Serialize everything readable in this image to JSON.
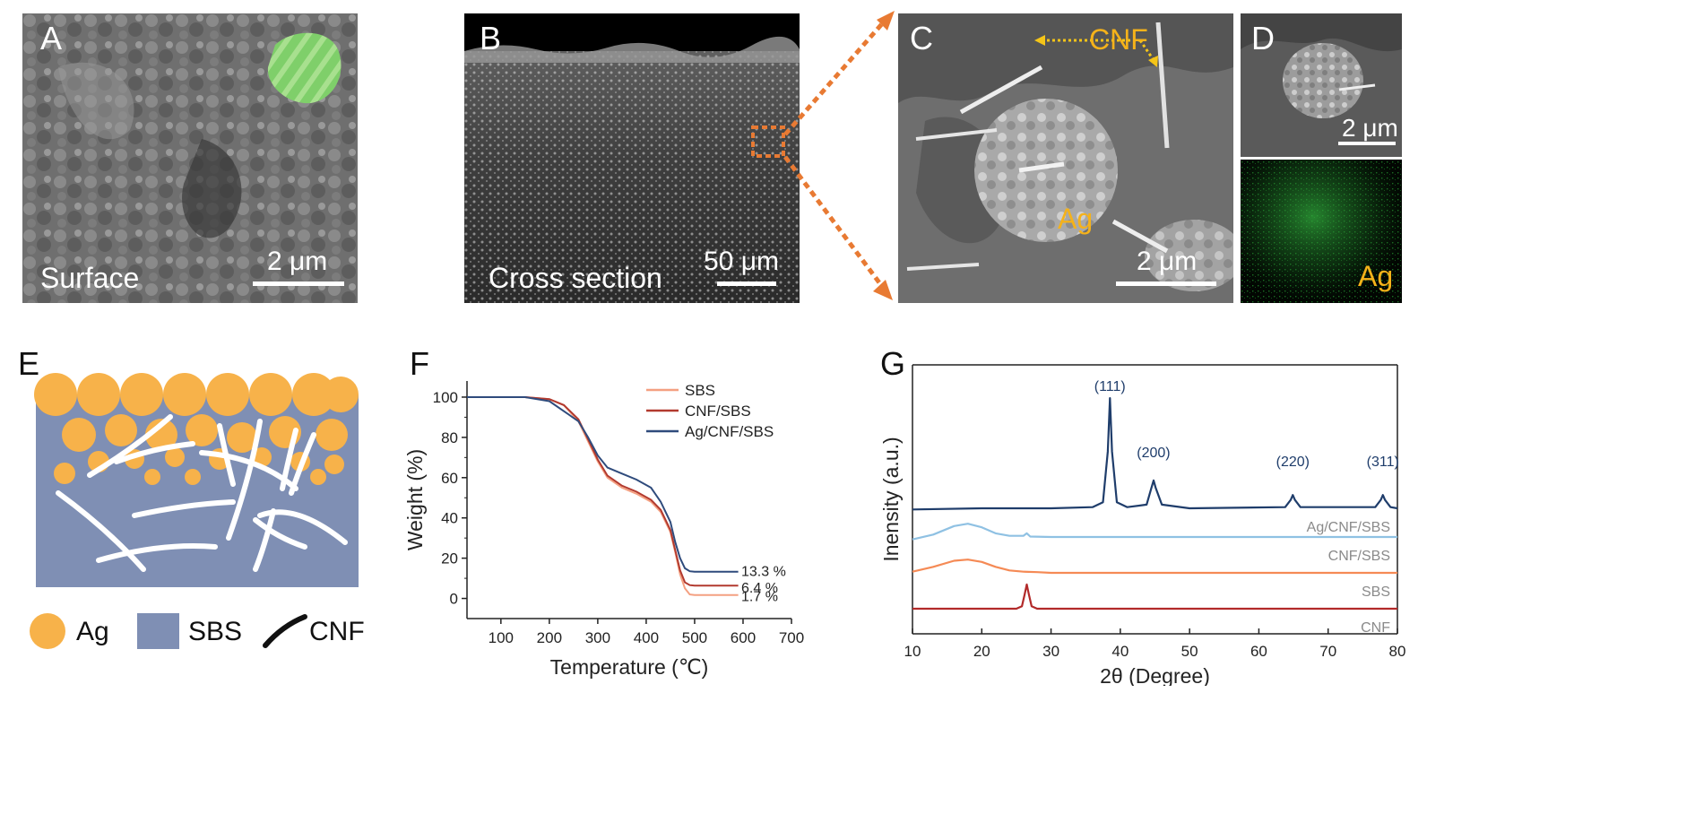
{
  "panels": {
    "A": {
      "letter": "A",
      "label": "Surface",
      "scale": "2 μm"
    },
    "B": {
      "letter": "B",
      "label": "Cross section",
      "scale": "50 μm"
    },
    "C": {
      "letter": "C",
      "cnf_label": "CNF",
      "ag_label": "Ag",
      "scale": "2 μm"
    },
    "D": {
      "letter": "D",
      "scale": "2 μm",
      "map_label": "Ag"
    },
    "E": {
      "letter": "E",
      "legend": [
        {
          "label": "Ag",
          "color": "#f7b24a"
        },
        {
          "label": "SBS",
          "color": "#7f8fb4"
        },
        {
          "label": "CNF",
          "color": "#111111"
        }
      ]
    },
    "F": {
      "letter": "F"
    },
    "G": {
      "letter": "G"
    }
  },
  "colors": {
    "orange_arrow": "#e87a33",
    "sem_bg": "#555555",
    "map_green": "#2fa63a"
  },
  "chart_data": [
    {
      "panel": "F",
      "type": "line",
      "xlabel": "Temperature (℃)",
      "ylabel": "Weight (%)",
      "xlim": [
        30,
        700
      ],
      "ylim": [
        -10,
        108
      ],
      "xticks": [
        100,
        200,
        300,
        400,
        500,
        600,
        700
      ],
      "yticks": [
        0,
        20,
        40,
        60,
        80,
        100
      ],
      "legend_position": "top-right",
      "series": [
        {
          "name": "SBS",
          "color": "#f4a081",
          "x": [
            30,
            150,
            200,
            230,
            260,
            280,
            300,
            320,
            350,
            380,
            410,
            430,
            450,
            460,
            470,
            480,
            490,
            500,
            520,
            550,
            590
          ],
          "y": [
            100,
            100,
            99,
            96,
            88,
            78,
            68,
            60,
            55,
            52,
            48,
            43,
            33,
            23,
            12,
            5,
            2,
            1.7,
            1.7,
            1.7,
            1.7
          ]
        },
        {
          "name": "CNF/SBS",
          "color": "#b23a2f",
          "x": [
            30,
            150,
            200,
            230,
            260,
            280,
            300,
            320,
            350,
            380,
            410,
            430,
            450,
            460,
            470,
            480,
            490,
            500,
            520,
            550,
            590
          ],
          "y": [
            100,
            100,
            99,
            96,
            89,
            79,
            69,
            61,
            56,
            53,
            49,
            44,
            34,
            24,
            14,
            8,
            6.6,
            6.4,
            6.4,
            6.4,
            6.4
          ]
        },
        {
          "name": "Ag/CNF/SBS",
          "color": "#2f4b7c",
          "x": [
            30,
            150,
            200,
            230,
            260,
            280,
            300,
            320,
            350,
            380,
            410,
            430,
            450,
            460,
            470,
            480,
            490,
            500,
            520,
            550,
            590
          ],
          "y": [
            100,
            100,
            98,
            93,
            88,
            80,
            71,
            65,
            62,
            59,
            55,
            48,
            38,
            28,
            20,
            15,
            13.5,
            13.3,
            13.3,
            13.3,
            13.3
          ]
        }
      ],
      "annotations": [
        "13.3 %",
        "6.4 %",
        "1.7 %"
      ]
    },
    {
      "panel": "G",
      "type": "line",
      "xlabel": "2θ (Degree)",
      "ylabel": "Inensity (a.u.)",
      "xlim": [
        10,
        80
      ],
      "xticks": [
        10,
        20,
        30,
        40,
        50,
        60,
        70,
        80
      ],
      "series": [
        {
          "name": "Ag/CNF/SBS",
          "color": "#1f3d6b",
          "x": [
            10,
            20,
            30,
            36,
            37.5,
            38.2,
            38.5,
            38.8,
            39.5,
            41,
            43.8,
            44.5,
            44.8,
            45.1,
            46,
            50,
            63.8,
            64.6,
            64.9,
            65.2,
            66,
            76.8,
            77.6,
            77.9,
            78.2,
            79,
            80
          ],
          "y": [
            0.06,
            0.065,
            0.065,
            0.07,
            0.09,
            0.3,
            0.52,
            0.3,
            0.09,
            0.07,
            0.08,
            0.15,
            0.18,
            0.15,
            0.08,
            0.065,
            0.07,
            0.1,
            0.12,
            0.1,
            0.07,
            0.07,
            0.1,
            0.12,
            0.1,
            0.07,
            0.065
          ]
        },
        {
          "name": "CNF/SBS",
          "color": "#8fc1e3",
          "x": [
            10,
            13,
            16,
            18,
            20,
            22,
            24,
            26,
            26.5,
            27,
            30,
            40,
            50,
            60,
            70,
            80
          ],
          "y": [
            0.03,
            0.05,
            0.085,
            0.095,
            0.08,
            0.055,
            0.045,
            0.045,
            0.055,
            0.042,
            0.04,
            0.04,
            0.04,
            0.04,
            0.04,
            0.04
          ]
        },
        {
          "name": "SBS",
          "color": "#f58a55",
          "x": [
            10,
            13,
            16,
            18,
            20,
            22,
            24,
            26,
            28,
            30,
            40,
            50,
            60,
            70,
            80
          ],
          "y": [
            0.03,
            0.05,
            0.075,
            0.08,
            0.07,
            0.05,
            0.035,
            0.03,
            0.028,
            0.025,
            0.025,
            0.025,
            0.025,
            0.025,
            0.025
          ]
        },
        {
          "name": "CNF",
          "color": "#b22a2a",
          "x": [
            10,
            25,
            25.8,
            26.2,
            26.5,
            26.8,
            27.2,
            28,
            40,
            50,
            60,
            70,
            80
          ],
          "y": [
            0.02,
            0.02,
            0.03,
            0.08,
            0.12,
            0.08,
            0.03,
            0.02,
            0.02,
            0.02,
            0.02,
            0.02,
            0.02
          ]
        }
      ],
      "peak_labels": [
        {
          "text": "(111)",
          "x": 38.5
        },
        {
          "text": "(200)",
          "x": 44.8
        },
        {
          "text": "(220)",
          "x": 64.9
        },
        {
          "text": "(311)",
          "x": 77.9
        }
      ]
    }
  ]
}
